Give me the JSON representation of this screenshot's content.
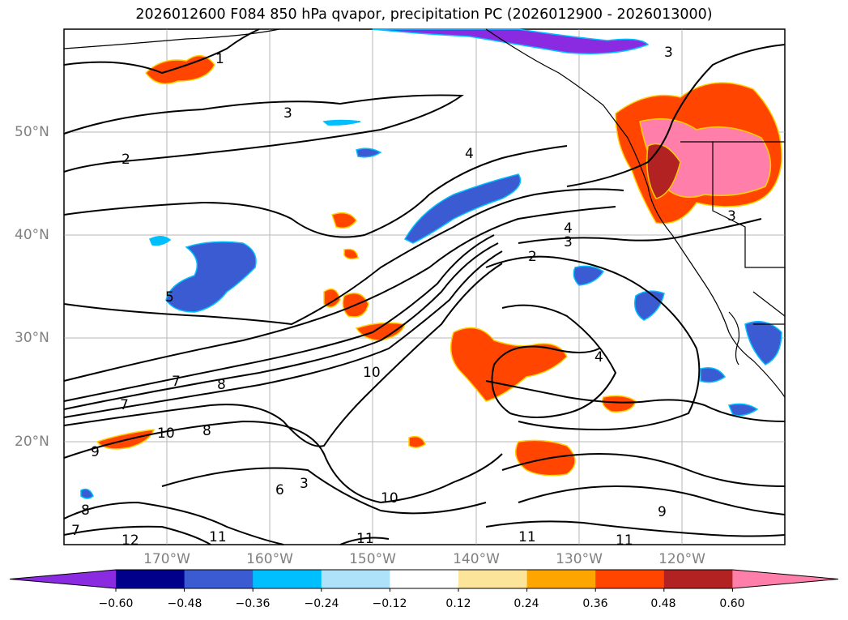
{
  "title": "2026012600 F084 850 hPa qvapor, precipitation PC (2026012900 - 2026013000)",
  "map": {
    "lat_labels": [
      "50°N",
      "40°N",
      "30°N",
      "20°N"
    ],
    "lon_labels": [
      "170°W",
      "160°W",
      "150°W",
      "140°W",
      "130°W",
      "120°W"
    ],
    "contour_labels": [
      "1",
      "3",
      "2",
      "3",
      "4",
      "4",
      "3",
      "2",
      "5",
      "3",
      "10",
      "4",
      "7",
      "8",
      "7",
      "10",
      "8",
      "9",
      "6",
      "10",
      "11",
      "11",
      "12",
      "11",
      "11",
      "9",
      "3",
      "8",
      "7"
    ]
  },
  "colorbar": {
    "ticks": [
      "−0.60",
      "−0.48",
      "−0.36",
      "−0.24",
      "−0.12",
      "0.12",
      "0.24",
      "0.36",
      "0.48",
      "0.60"
    ],
    "colors": [
      "#8a2be2",
      "#00008b",
      "#3a5bd1",
      "#00bfff",
      "#aee2fb",
      "#ffffff",
      "#fce59a",
      "#ffa500",
      "#ff4500",
      "#b22222",
      "#ff7faa"
    ]
  }
}
